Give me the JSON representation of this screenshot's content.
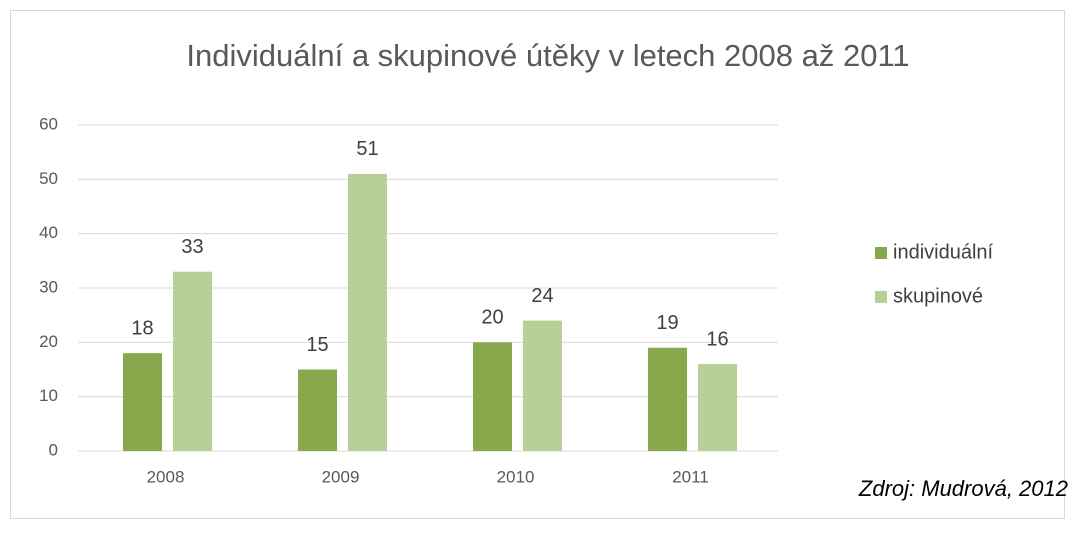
{
  "chart_data": {
    "type": "bar",
    "title": "Individuální a skupinové útěky v letech 2008 až 2011",
    "categories": [
      "2008",
      "2009",
      "2010",
      "2011"
    ],
    "series": [
      {
        "name": "individuální",
        "color": "#87a84b",
        "values": [
          18,
          15,
          20,
          19
        ]
      },
      {
        "name": "skupinové",
        "color": "#b8cf98",
        "values": [
          33,
          51,
          24,
          16
        ]
      }
    ],
    "ylim": [
      0,
      60
    ],
    "yticks": [
      0,
      10,
      20,
      30,
      40,
      50,
      60
    ],
    "grid": true,
    "legend": "right",
    "annotation": "Zdroj: Mudrová, 2012"
  }
}
